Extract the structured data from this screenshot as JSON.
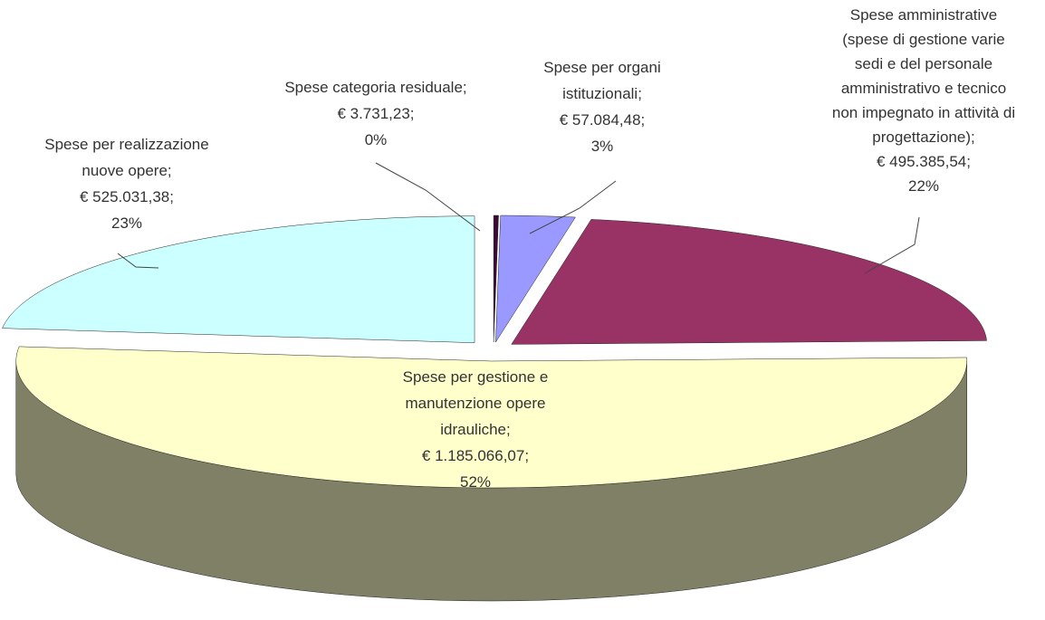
{
  "chart_data": {
    "type": "pie3d",
    "categories": [
      [
        "Spese categoria residuale;"
      ],
      [
        "Spese per organi",
        "istituzionali;"
      ],
      [
        "Spese amministrative",
        "(spese di gestione varie",
        "sedi e del personale",
        "amministrativo e tecnico",
        "non impegnato in attività di",
        "progettazione);"
      ],
      [
        "Spese per gestione e",
        "manutenzione opere",
        "idrauliche;"
      ],
      [
        "Spese per realizzazione",
        "nuove opere;"
      ]
    ],
    "values": [
      3731.23,
      57084.48,
      495385.54,
      1185066.07,
      525031.38
    ],
    "value_labels": [
      "€ 3.731,23;",
      "€ 57.084,48;",
      "€ 495.385,54;",
      "€ 1.185.066,07;",
      "€ 525.031,38;"
    ],
    "percents": [
      0,
      3,
      22,
      52,
      23
    ],
    "percent_labels": [
      "0%",
      "3%",
      "22%",
      "52%",
      "23%"
    ],
    "colors": [
      "#3a0a36",
      "#9999ff",
      "#993366",
      "#ffffcc",
      "#ccffff"
    ]
  }
}
